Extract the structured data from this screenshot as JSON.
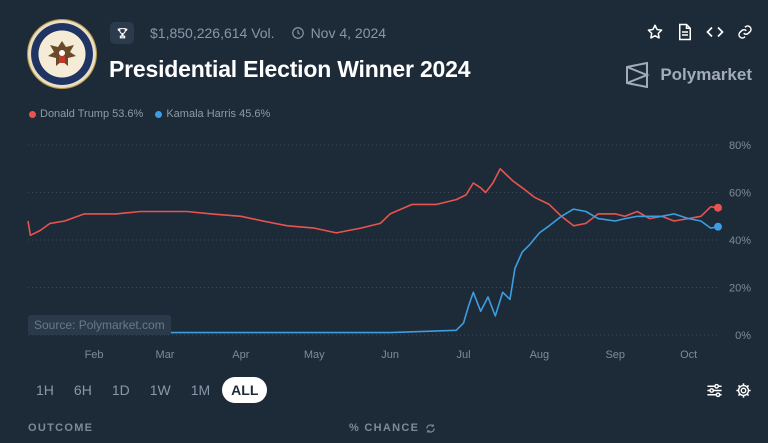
{
  "market": {
    "title": "Presidential Election Winner 2024",
    "volume": "$1,850,226,614 Vol.",
    "end_date": "Nov 4, 2024",
    "brand": "Polymarket"
  },
  "actions": [
    "star-icon",
    "document-icon",
    "code-icon",
    "link-icon"
  ],
  "legend": [
    {
      "label": "Donald Trump 53.6%",
      "color": "#e9534f"
    },
    {
      "label": "Kamala Harris 45.6%",
      "color": "#3c9ddf"
    }
  ],
  "source": "Source: Polymarket.com",
  "ranges": [
    "1H",
    "6H",
    "1D",
    "1W",
    "1M",
    "ALL"
  ],
  "selected_range": "ALL",
  "footer": {
    "outcome": "OUTCOME",
    "chance": "% CHANCE"
  },
  "chart_data": {
    "type": "line",
    "x_ticks": [
      "Feb",
      "Mar",
      "Apr",
      "May",
      "Jun",
      "Jul",
      "Aug",
      "Sep",
      "Oct"
    ],
    "y_ticks": [
      "80%",
      "60%",
      "40%",
      "20%",
      "0%"
    ],
    "ylim": [
      0,
      80
    ],
    "grid": true,
    "x_range": [
      "2024-01-05",
      "2024-10-13"
    ],
    "series": [
      {
        "name": "Donald Trump",
        "color": "#e9534f",
        "points": [
          [
            "2024-01-05",
            48
          ],
          [
            "2024-01-06",
            42
          ],
          [
            "2024-01-10",
            44
          ],
          [
            "2024-01-14",
            47
          ],
          [
            "2024-01-20",
            48
          ],
          [
            "2024-01-28",
            51
          ],
          [
            "2024-02-10",
            51
          ],
          [
            "2024-02-20",
            52
          ],
          [
            "2024-03-01",
            52
          ],
          [
            "2024-03-10",
            52
          ],
          [
            "2024-03-20",
            51
          ],
          [
            "2024-04-01",
            50
          ],
          [
            "2024-04-10",
            48
          ],
          [
            "2024-04-20",
            46
          ],
          [
            "2024-05-01",
            45
          ],
          [
            "2024-05-10",
            43
          ],
          [
            "2024-05-20",
            45
          ],
          [
            "2024-05-28",
            47
          ],
          [
            "2024-06-01",
            51
          ],
          [
            "2024-06-10",
            55
          ],
          [
            "2024-06-20",
            55
          ],
          [
            "2024-06-28",
            57
          ],
          [
            "2024-07-02",
            59
          ],
          [
            "2024-07-05",
            64
          ],
          [
            "2024-07-08",
            62
          ],
          [
            "2024-07-10",
            60
          ],
          [
            "2024-07-13",
            64
          ],
          [
            "2024-07-16",
            70
          ],
          [
            "2024-07-18",
            68
          ],
          [
            "2024-07-21",
            65
          ],
          [
            "2024-07-25",
            62
          ],
          [
            "2024-07-30",
            58
          ],
          [
            "2024-08-05",
            55
          ],
          [
            "2024-08-10",
            50
          ],
          [
            "2024-08-15",
            46
          ],
          [
            "2024-08-20",
            47
          ],
          [
            "2024-08-25",
            51
          ],
          [
            "2024-09-01",
            51
          ],
          [
            "2024-09-05",
            50
          ],
          [
            "2024-09-10",
            52
          ],
          [
            "2024-09-15",
            49
          ],
          [
            "2024-09-20",
            50
          ],
          [
            "2024-09-25",
            48
          ],
          [
            "2024-10-01",
            49
          ],
          [
            "2024-10-06",
            50
          ],
          [
            "2024-10-10",
            54
          ],
          [
            "2024-10-13",
            53.6
          ]
        ]
      },
      {
        "name": "Kamala Harris",
        "color": "#3c9ddf",
        "points": [
          [
            "2024-01-05",
            2
          ],
          [
            "2024-02-01",
            1
          ],
          [
            "2024-03-01",
            1
          ],
          [
            "2024-04-01",
            1
          ],
          [
            "2024-05-01",
            1
          ],
          [
            "2024-06-01",
            1
          ],
          [
            "2024-06-28",
            2
          ],
          [
            "2024-07-01",
            5
          ],
          [
            "2024-07-03",
            12
          ],
          [
            "2024-07-05",
            18
          ],
          [
            "2024-07-08",
            10
          ],
          [
            "2024-07-11",
            16
          ],
          [
            "2024-07-14",
            8
          ],
          [
            "2024-07-17",
            18
          ],
          [
            "2024-07-20",
            15
          ],
          [
            "2024-07-22",
            28
          ],
          [
            "2024-07-25",
            35
          ],
          [
            "2024-07-28",
            38
          ],
          [
            "2024-08-01",
            43
          ],
          [
            "2024-08-05",
            46
          ],
          [
            "2024-08-10",
            50
          ],
          [
            "2024-08-15",
            53
          ],
          [
            "2024-08-20",
            52
          ],
          [
            "2024-08-25",
            49
          ],
          [
            "2024-09-01",
            48
          ],
          [
            "2024-09-05",
            49
          ],
          [
            "2024-09-10",
            50
          ],
          [
            "2024-09-15",
            50
          ],
          [
            "2024-09-20",
            50
          ],
          [
            "2024-09-25",
            51
          ],
          [
            "2024-10-01",
            49
          ],
          [
            "2024-10-06",
            48
          ],
          [
            "2024-10-10",
            45
          ],
          [
            "2024-10-13",
            45.6
          ]
        ]
      }
    ]
  }
}
